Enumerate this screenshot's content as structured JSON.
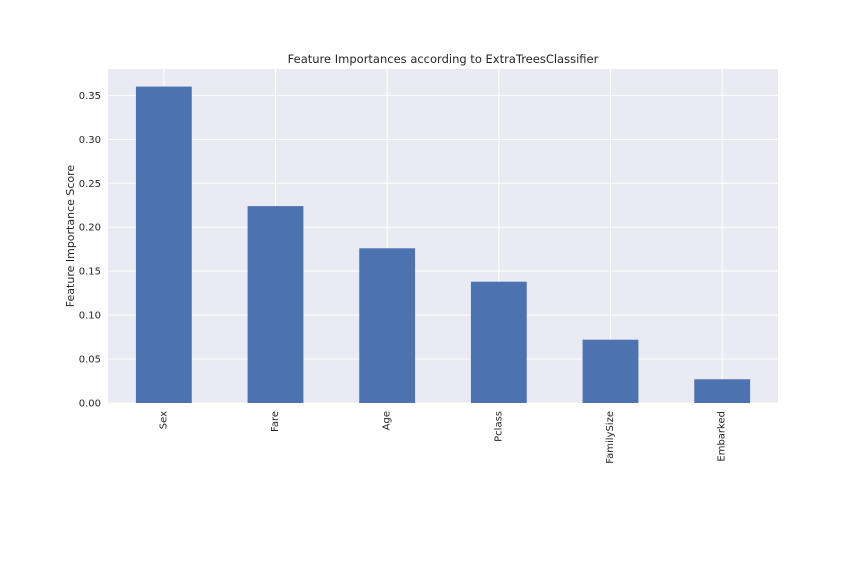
{
  "chart_data": {
    "type": "bar",
    "title": "Feature Importances according to ExtraTreesClassifier",
    "xlabel": "",
    "ylabel": "Feature Importance Score",
    "categories": [
      "Sex",
      "Fare",
      "Age",
      "Pclass",
      "FamilySize",
      "Embarked"
    ],
    "values": [
      0.36,
      0.224,
      0.176,
      0.138,
      0.072,
      0.027
    ],
    "ylim": [
      0,
      0.38
    ],
    "yticks": [
      0.0,
      0.05,
      0.1,
      0.15,
      0.2,
      0.25,
      0.3,
      0.35
    ],
    "ytick_labels": [
      "0.00",
      "0.05",
      "0.10",
      "0.15",
      "0.20",
      "0.25",
      "0.30",
      "0.35"
    ],
    "grid": true,
    "colors": {
      "bar": "#4c72b0",
      "plot_background": "#eaeaf2",
      "grid": "#ffffff",
      "text": "#262626"
    }
  }
}
